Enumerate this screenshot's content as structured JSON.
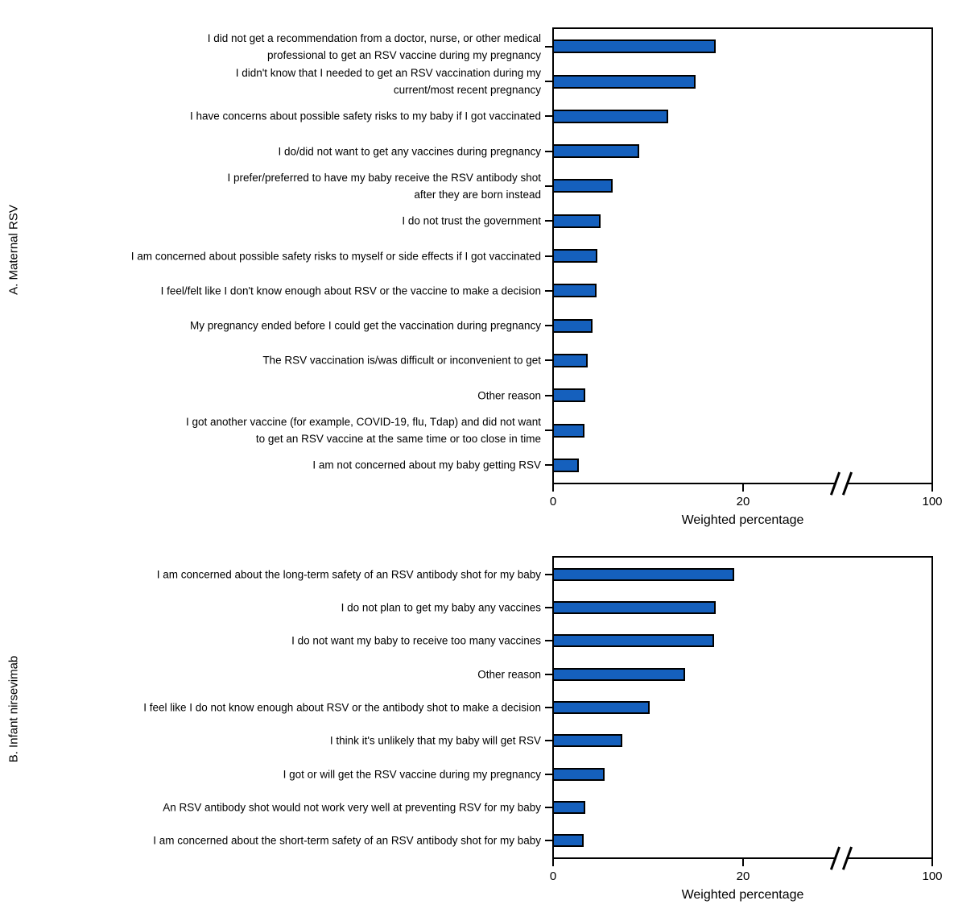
{
  "figure": {
    "background": "#ffffff",
    "line_color": "#000000"
  },
  "chart_data": [
    {
      "type": "bar",
      "orientation": "horizontal",
      "panel_label": "A. Maternal RSV",
      "xlabel": "Weighted percentage",
      "bar_color": "#1560bd",
      "bar_outline": "#000000",
      "xlim": [
        0,
        100
      ],
      "axis_break_between": [
        20,
        100
      ],
      "grid": false,
      "legend": false,
      "x_ticks": [
        {
          "value": 0,
          "label": "0"
        },
        {
          "value": 20,
          "label": "20"
        },
        {
          "value": 100,
          "label": "100"
        }
      ],
      "categories": [
        "I did not get a recommendation from a doctor, nurse, or other medical\nprofessional to get an RSV vaccine during my pregnancy",
        "I didn't know that I needed to get an RSV vaccination during my\ncurrent/most recent pregnancy",
        "I have concerns about possible safety risks to my baby if I got vaccinated",
        "I do/did not want to get any vaccines during pregnancy",
        "I prefer/preferred to have my baby receive the RSV antibody shot\nafter they are born instead",
        "I do not trust the government",
        "I am concerned about possible safety risks to myself or side effects if I got vaccinated",
        "I feel/felt like I don't know enough about RSV or the vaccine to make a decision",
        "My pregnancy ended before I could get the vaccination during pregnancy",
        "The RSV vaccination is/was difficult or inconvenient to get",
        "Other reason",
        "I got another vaccine (for example, COVID-19, flu, Tdap) and did not want\nto get an RSV vaccine at the same time or too close in time",
        "I am not concerned about my baby getting RSV"
      ],
      "values": [
        17.0,
        14.9,
        12.0,
        9.0,
        6.2,
        4.9,
        4.6,
        4.5,
        4.1,
        3.6,
        3.3,
        3.2,
        2.6
      ]
    },
    {
      "type": "bar",
      "orientation": "horizontal",
      "panel_label": "B. Infant nirsevimab",
      "xlabel": "Weighted percentage",
      "bar_color": "#1560bd",
      "bar_outline": "#000000",
      "xlim": [
        0,
        100
      ],
      "axis_break_between": [
        20,
        100
      ],
      "grid": false,
      "legend": false,
      "x_ticks": [
        {
          "value": 0,
          "label": "0"
        },
        {
          "value": 20,
          "label": "20"
        },
        {
          "value": 100,
          "label": "100"
        }
      ],
      "categories": [
        "I am concerned about the long-term safety of an RSV antibody shot for my baby",
        "I do not plan to get my baby any vaccines",
        "I do not want my baby to receive too many vaccines",
        "Other reason",
        "I feel like I do not know enough about RSV or the antibody shot to make a decision",
        "I think it's unlikely that my baby will get RSV",
        "I got or will get the RSV vaccine during my pregnancy",
        "An RSV antibody shot would not work very well at preventing RSV for my baby",
        "I am concerned about the short-term safety of an RSV antibody shot for my baby"
      ],
      "values": [
        19.0,
        17.0,
        16.9,
        13.8,
        10.1,
        7.2,
        5.3,
        3.3,
        3.1
      ]
    }
  ]
}
